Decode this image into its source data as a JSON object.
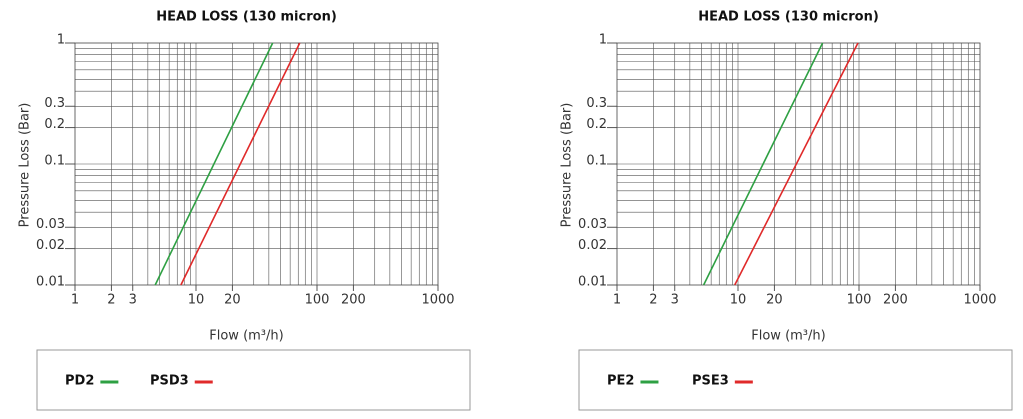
{
  "chart_data": [
    {
      "type": "line",
      "title": "HEAD LOSS (130 micron)",
      "x_label": "Flow (m³/h)",
      "y_label": "Pressure Loss (Bar)",
      "log_x": true,
      "log_y": true,
      "grid": true,
      "xlim": [
        1,
        1000
      ],
      "ylim": [
        0.01,
        1
      ],
      "xticks": [
        1,
        2,
        3,
        10,
        20,
        100,
        200,
        1000
      ],
      "yticks": [
        0.01,
        0.02,
        0.03,
        0.1,
        0.2,
        0.3,
        1
      ],
      "series": [
        {
          "name": "PD2",
          "color": "#2ea043",
          "x": [
            4.6,
            43
          ],
          "values": [
            0.01,
            1
          ]
        },
        {
          "name": "PSD3",
          "color": "#e02a2a",
          "x": [
            7.5,
            72
          ],
          "values": [
            0.01,
            1
          ]
        }
      ]
    },
    {
      "type": "line",
      "title": "HEAD LOSS (130 micron)",
      "x_label": "Flow (m³/h)",
      "y_label": "Pressure Loss (Bar)",
      "log_x": true,
      "log_y": true,
      "grid": true,
      "xlim": [
        1,
        1000
      ],
      "ylim": [
        0.01,
        1
      ],
      "xticks": [
        1,
        2,
        3,
        10,
        20,
        100,
        200,
        1000
      ],
      "yticks": [
        0.01,
        0.02,
        0.03,
        0.1,
        0.2,
        0.3,
        1
      ],
      "series": [
        {
          "name": "PE2",
          "color": "#2ea043",
          "x": [
            5.2,
            50
          ],
          "values": [
            0.01,
            1
          ]
        },
        {
          "name": "PSE3",
          "color": "#e02a2a",
          "x": [
            9.4,
            98
          ],
          "values": [
            0.01,
            1
          ]
        }
      ]
    }
  ]
}
